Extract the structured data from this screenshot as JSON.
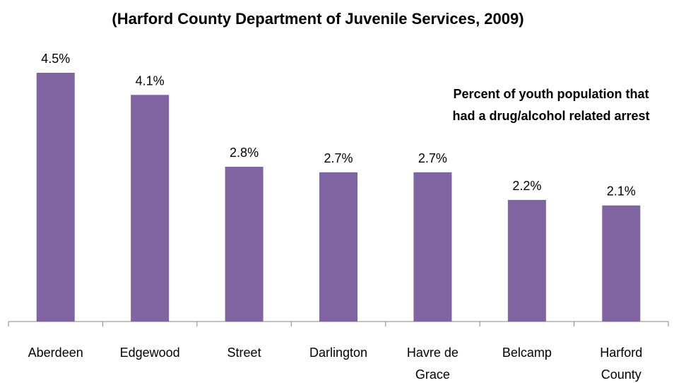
{
  "chart_data": {
    "type": "bar",
    "title": "(Harford County Department of Juvenile Services, 2009)",
    "annotation": "Percent of youth population that had a drug/alcohol related arrest",
    "categories": [
      "Aberdeen",
      "Edgewood",
      "Street",
      "Darlington",
      "Havre de Grace",
      "Belcamp",
      "Harford County"
    ],
    "values": [
      4.5,
      4.1,
      2.8,
      2.7,
      2.7,
      2.2,
      2.1
    ],
    "value_labels": [
      "4.5%",
      "4.1%",
      "2.8%",
      "2.7%",
      "2.7%",
      "2.2%",
      "2.1%"
    ],
    "color": "#8064a2"
  }
}
